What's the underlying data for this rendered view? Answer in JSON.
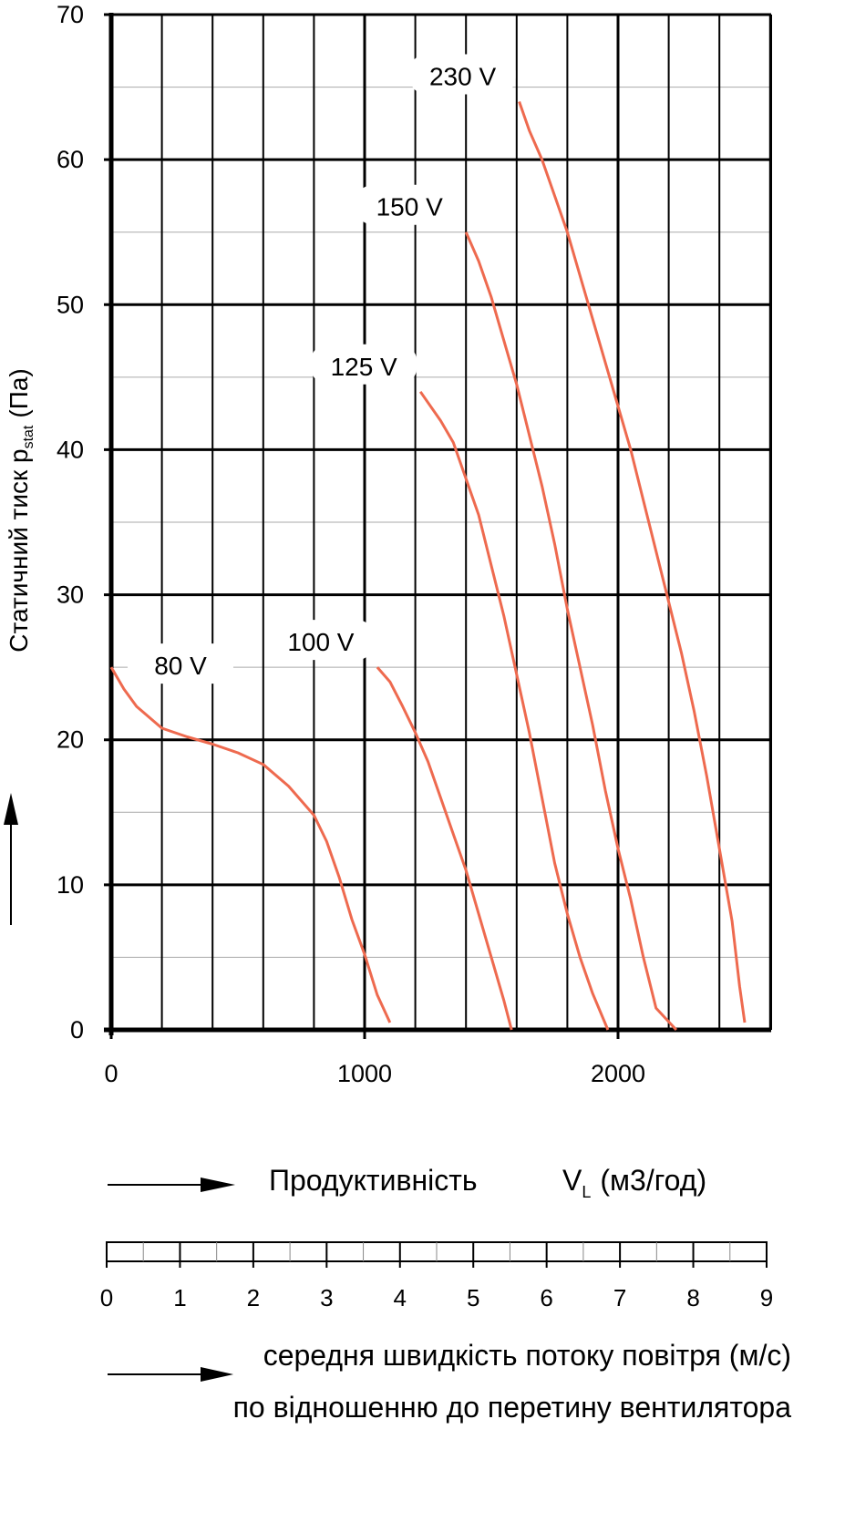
{
  "chart_data": {
    "type": "line",
    "y_axis": {
      "label_main": "Статичний тиск p",
      "label_sub": "stat",
      "label_unit": "(Па)",
      "ticks": [
        "0",
        "10",
        "20",
        "30",
        "40",
        "50",
        "60",
        "70"
      ],
      "range": [
        0,
        70
      ],
      "minor_step": 5,
      "major_step": 10
    },
    "x_axis": {
      "label_main": "Продуктивність",
      "label_symbol": "V",
      "label_sub": "L",
      "label_unit": "(м3/год)",
      "ticks": [
        "0",
        "1000",
        "2000"
      ],
      "range": [
        0,
        2600
      ],
      "grid_step": 200
    },
    "velocity_scale": {
      "ticks": [
        "0",
        "1",
        "2",
        "3",
        "4",
        "5",
        "6",
        "7",
        "8",
        "9"
      ],
      "range": [
        0,
        9
      ],
      "label_line1": "середня швидкість потоку повітря (м/с)",
      "label_line2": "по відношенню до перетину вентилятора"
    },
    "grid": true,
    "colors": {
      "curve": "#ee6a4f",
      "grid": "#000000",
      "minor_grid": "#aaaaaa"
    },
    "series": [
      {
        "name": "80 V",
        "points": [
          [
            0,
            25
          ],
          [
            50,
            23.5
          ],
          [
            100,
            22.3
          ],
          [
            200,
            20.8
          ],
          [
            300,
            20.2
          ],
          [
            400,
            19.7
          ],
          [
            500,
            19.1
          ],
          [
            600,
            18.3
          ],
          [
            700,
            16.8
          ],
          [
            800,
            14.8
          ],
          [
            850,
            13.0
          ],
          [
            900,
            10.5
          ],
          [
            950,
            7.6
          ],
          [
            1000,
            5.2
          ],
          [
            1050,
            2.4
          ],
          [
            1100,
            0.5
          ]
        ]
      },
      {
        "name": "100 V",
        "points": [
          [
            1050,
            25
          ],
          [
            1100,
            24
          ],
          [
            1150,
            22.3
          ],
          [
            1200,
            20.5
          ],
          [
            1250,
            18.5
          ],
          [
            1300,
            16.0
          ],
          [
            1350,
            13.5
          ],
          [
            1400,
            11.0
          ],
          [
            1450,
            8.0
          ],
          [
            1500,
            5.0
          ],
          [
            1550,
            2.0
          ],
          [
            1580,
            0
          ]
        ]
      },
      {
        "name": "125 V",
        "points": [
          [
            1220,
            44
          ],
          [
            1300,
            42
          ],
          [
            1350,
            40.5
          ],
          [
            1400,
            38
          ],
          [
            1450,
            35.5
          ],
          [
            1500,
            32
          ],
          [
            1550,
            28.5
          ],
          [
            1600,
            24.5
          ],
          [
            1650,
            20.5
          ],
          [
            1700,
            16.0
          ],
          [
            1750,
            11.5
          ],
          [
            1800,
            8.0
          ],
          [
            1850,
            5.0
          ],
          [
            1900,
            2.5
          ],
          [
            1960,
            0
          ]
        ]
      },
      {
        "name": "150 V",
        "points": [
          [
            1400,
            55
          ],
          [
            1450,
            53
          ],
          [
            1500,
            50.5
          ],
          [
            1550,
            47.5
          ],
          [
            1600,
            44.5
          ],
          [
            1650,
            41
          ],
          [
            1700,
            37.5
          ],
          [
            1750,
            33.5
          ],
          [
            1800,
            29
          ],
          [
            1850,
            25
          ],
          [
            1900,
            21
          ],
          [
            1950,
            16.5
          ],
          [
            2000,
            12.5
          ],
          [
            2050,
            9
          ],
          [
            2100,
            5
          ],
          [
            2150,
            1.5
          ],
          [
            2230,
            0
          ]
        ]
      },
      {
        "name": "230 V",
        "points": [
          [
            1610,
            64
          ],
          [
            1650,
            62
          ],
          [
            1700,
            60
          ],
          [
            1750,
            57.5
          ],
          [
            1800,
            55
          ],
          [
            1850,
            52
          ],
          [
            1900,
            49
          ],
          [
            1950,
            46
          ],
          [
            2000,
            43
          ],
          [
            2050,
            40
          ],
          [
            2100,
            36.5
          ],
          [
            2150,
            33
          ],
          [
            2200,
            29.5
          ],
          [
            2250,
            26
          ],
          [
            2300,
            22
          ],
          [
            2350,
            17.5
          ],
          [
            2400,
            12.5
          ],
          [
            2450,
            7.5
          ],
          [
            2480,
            3
          ],
          [
            2500,
            0.5
          ]
        ]
      }
    ]
  }
}
